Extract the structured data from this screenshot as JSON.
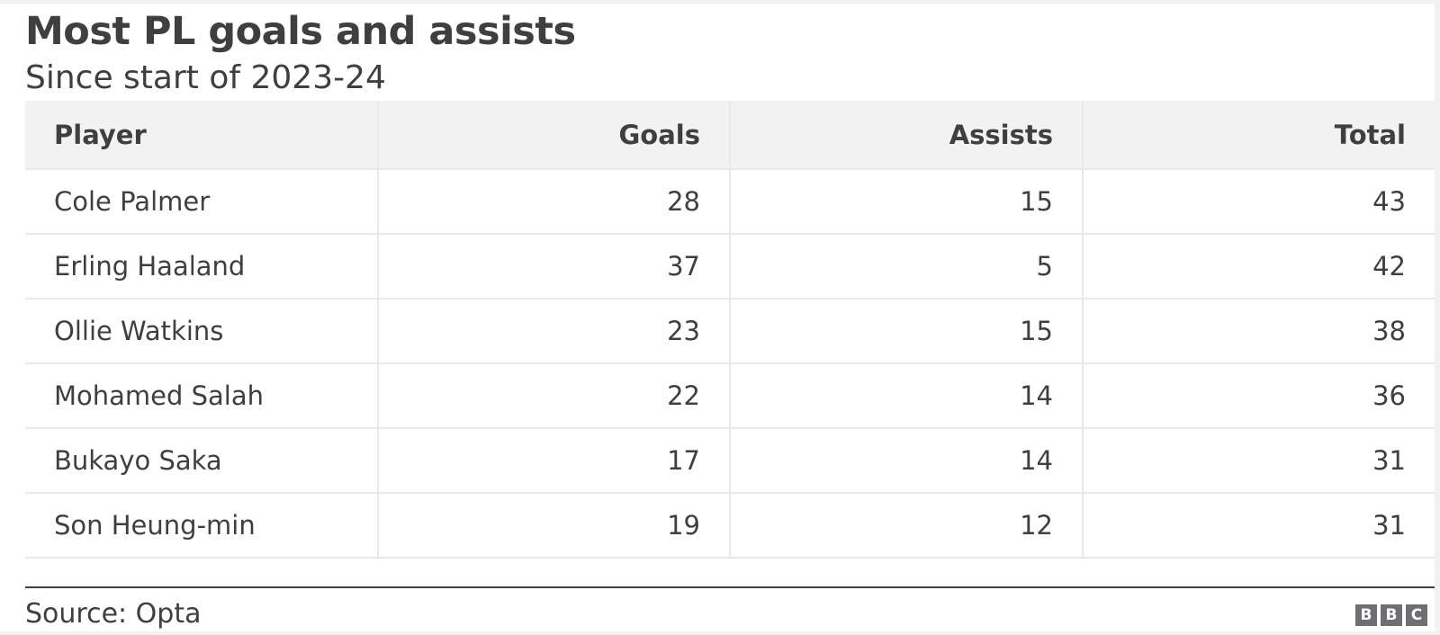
{
  "chart_data": {
    "type": "table",
    "title": "Most PL goals and assists",
    "subtitle": "Since start of 2023-24",
    "columns": [
      "Player",
      "Goals",
      "Assists",
      "Total"
    ],
    "rows": [
      {
        "player": "Cole Palmer",
        "goals": "28",
        "assists": "15",
        "total": "43"
      },
      {
        "player": "Erling Haaland",
        "goals": "37",
        "assists": "5",
        "total": "42"
      },
      {
        "player": "Ollie Watkins",
        "goals": "23",
        "assists": "15",
        "total": "38"
      },
      {
        "player": "Mohamed Salah",
        "goals": "22",
        "assists": "14",
        "total": "36"
      },
      {
        "player": "Bukayo Saka",
        "goals": "17",
        "assists": "14",
        "total": "31"
      },
      {
        "player": "Son Heung-min",
        "goals": "19",
        "assists": "12",
        "total": "31"
      }
    ],
    "source": "Source: Opta",
    "logo_letters": [
      "B",
      "B",
      "C"
    ]
  }
}
